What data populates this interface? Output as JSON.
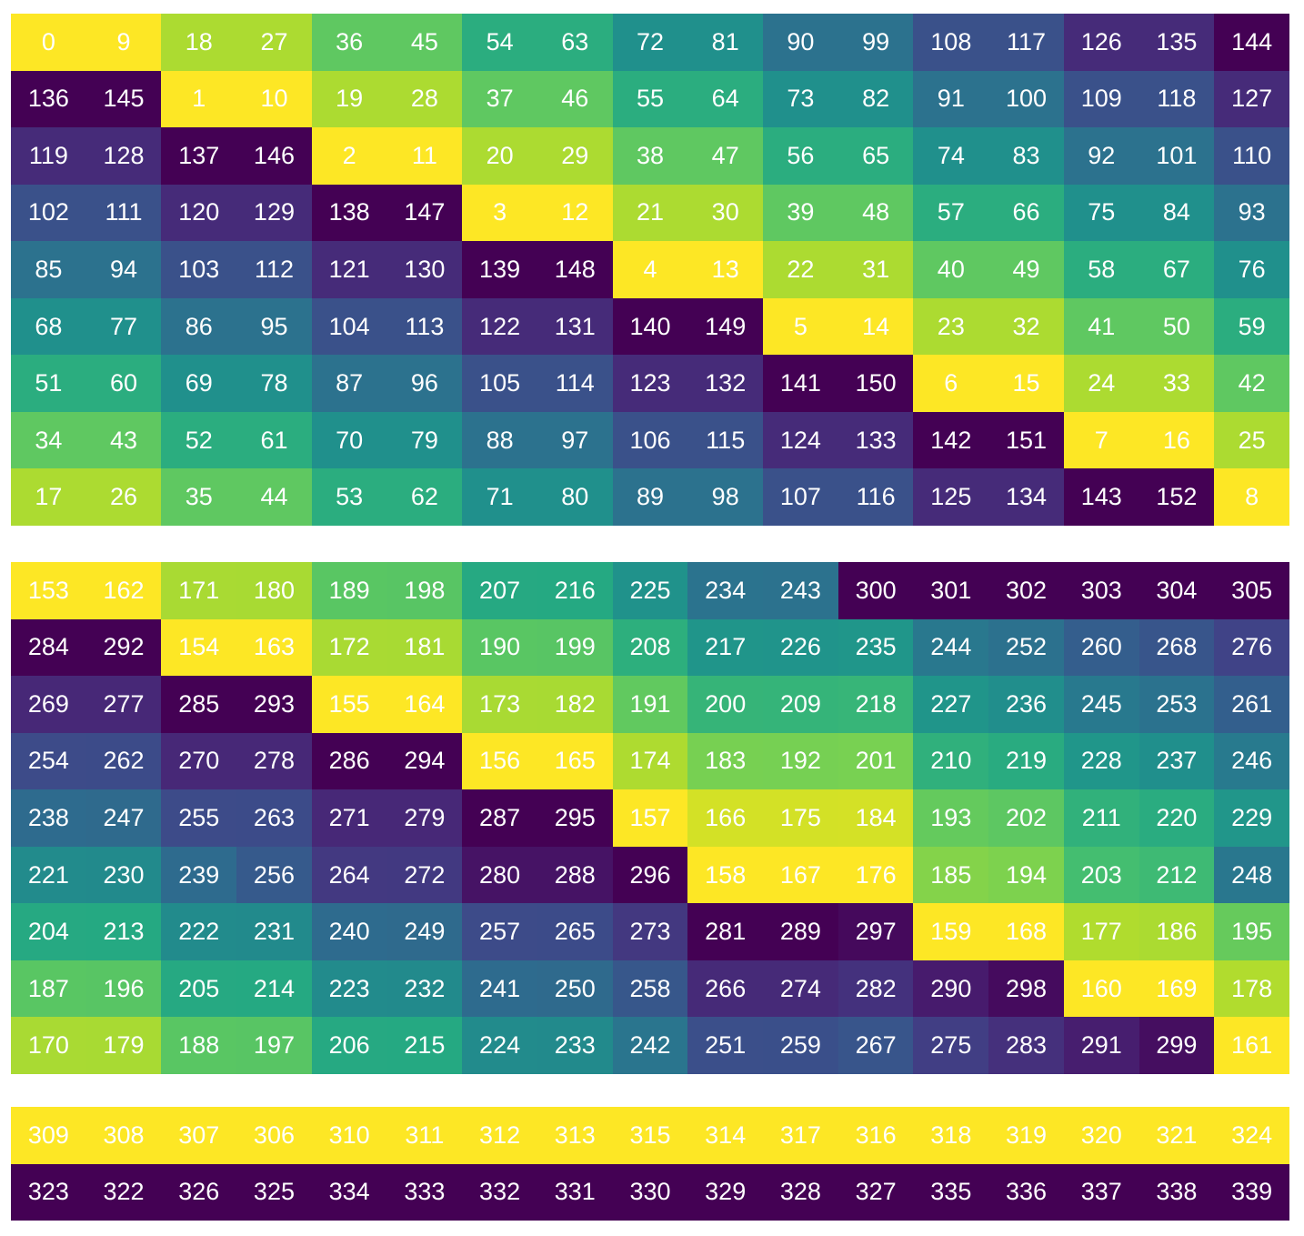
{
  "chart_data": [
    {
      "type": "heatmap",
      "colormap": "viridis",
      "rows": 9,
      "cols": 17,
      "values": [
        [
          0,
          9,
          18,
          27,
          36,
          45,
          54,
          63,
          72,
          81,
          90,
          99,
          108,
          117,
          126,
          135,
          144
        ],
        [
          136,
          145,
          1,
          10,
          19,
          28,
          37,
          46,
          55,
          64,
          73,
          82,
          91,
          100,
          109,
          118,
          127
        ],
        [
          119,
          128,
          137,
          146,
          2,
          11,
          20,
          29,
          38,
          47,
          56,
          65,
          74,
          83,
          92,
          101,
          110
        ],
        [
          102,
          111,
          120,
          129,
          138,
          147,
          3,
          12,
          21,
          30,
          39,
          48,
          57,
          66,
          75,
          84,
          93
        ],
        [
          85,
          94,
          103,
          112,
          121,
          130,
          139,
          148,
          4,
          13,
          22,
          31,
          40,
          49,
          58,
          67,
          76
        ],
        [
          68,
          77,
          86,
          95,
          104,
          113,
          122,
          131,
          140,
          149,
          5,
          14,
          23,
          32,
          41,
          50,
          59
        ],
        [
          51,
          60,
          69,
          78,
          87,
          96,
          105,
          114,
          123,
          132,
          141,
          150,
          6,
          15,
          24,
          33,
          42
        ],
        [
          34,
          43,
          52,
          61,
          70,
          79,
          88,
          97,
          106,
          115,
          124,
          133,
          142,
          151,
          7,
          16,
          25
        ],
        [
          17,
          26,
          35,
          44,
          53,
          62,
          71,
          80,
          89,
          98,
          107,
          116,
          125,
          134,
          143,
          152,
          8
        ]
      ]
    },
    {
      "type": "heatmap",
      "colormap": "viridis",
      "rows": 9,
      "cols": 17,
      "values": [
        [
          153,
          162,
          171,
          180,
          189,
          198,
          207,
          216,
          225,
          234,
          243,
          300,
          301,
          302,
          303,
          304,
          305
        ],
        [
          284,
          292,
          154,
          163,
          172,
          181,
          190,
          199,
          208,
          217,
          226,
          235,
          244,
          252,
          260,
          268,
          276
        ],
        [
          269,
          277,
          285,
          293,
          155,
          164,
          173,
          182,
          191,
          200,
          209,
          218,
          227,
          236,
          245,
          253,
          261
        ],
        [
          254,
          262,
          270,
          278,
          286,
          294,
          156,
          165,
          174,
          183,
          192,
          201,
          210,
          219,
          228,
          237,
          246
        ],
        [
          238,
          247,
          255,
          263,
          271,
          279,
          287,
          295,
          157,
          166,
          175,
          184,
          193,
          202,
          211,
          220,
          229
        ],
        [
          221,
          230,
          239,
          256,
          264,
          272,
          280,
          288,
          296,
          158,
          167,
          176,
          185,
          194,
          203,
          212,
          248
        ],
        [
          204,
          213,
          222,
          231,
          240,
          249,
          257,
          265,
          273,
          281,
          289,
          297,
          159,
          168,
          177,
          186,
          195
        ],
        [
          187,
          196,
          205,
          214,
          223,
          232,
          241,
          250,
          258,
          266,
          274,
          282,
          290,
          298,
          160,
          169,
          178
        ],
        [
          170,
          179,
          188,
          197,
          206,
          215,
          224,
          233,
          242,
          251,
          259,
          267,
          275,
          283,
          291,
          299,
          161
        ]
      ]
    },
    {
      "type": "heatmap",
      "colormap": "viridis",
      "rows": 2,
      "cols": 17,
      "values": [
        [
          309,
          308,
          307,
          306,
          310,
          311,
          312,
          313,
          315,
          314,
          317,
          316,
          318,
          319,
          320,
          321,
          324
        ],
        [
          323,
          322,
          326,
          325,
          334,
          333,
          332,
          331,
          330,
          329,
          328,
          327,
          335,
          336,
          337,
          338,
          339
        ]
      ]
    }
  ]
}
